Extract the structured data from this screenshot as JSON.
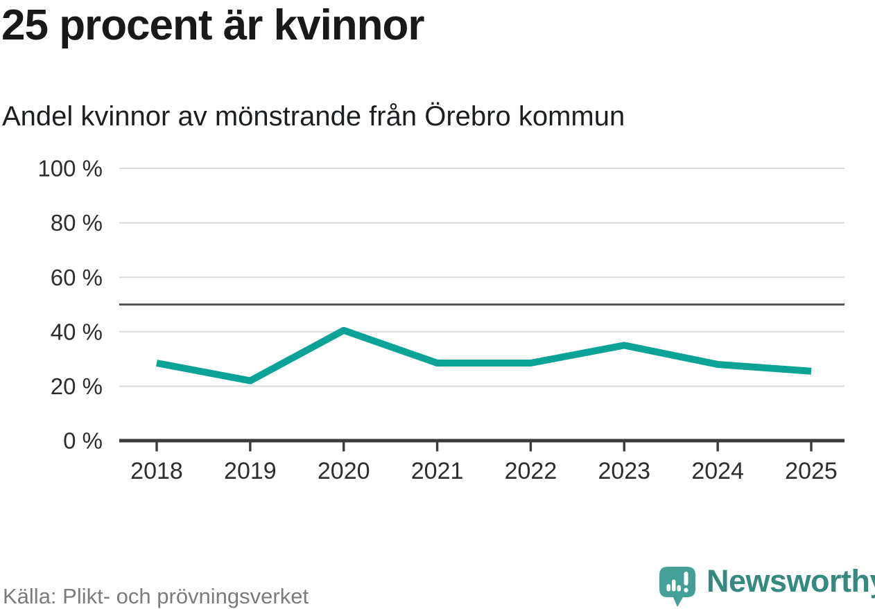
{
  "header": {
    "title": "25 procent är kvinnor",
    "subtitle": "Andel kvinnor av mönstrande från Örebro kommun"
  },
  "chart_data": {
    "type": "line",
    "title": "25 procent är kvinnor",
    "subtitle": "Andel kvinnor av mönstrande från Örebro kommun",
    "categories": [
      "2018",
      "2019",
      "2020",
      "2021",
      "2022",
      "2023",
      "2024",
      "2025"
    ],
    "series": [
      {
        "name": "Andel kvinnor av mönstrande",
        "values": [
          28.5,
          22,
          40.5,
          28.5,
          28.5,
          35,
          28,
          25.5
        ]
      }
    ],
    "unit": "%",
    "ylim": [
      0,
      100
    ],
    "yticks": [
      0,
      20,
      40,
      60,
      80,
      100
    ],
    "ytick_suffix": " %",
    "reference_line": 50,
    "grid": "horizontal-only",
    "legend": "none",
    "xlabel": "",
    "ylabel": ""
  },
  "footer": {
    "source": "Källa: Plikt- och prövningsverket",
    "logo_text": "Newsworthy"
  },
  "colors": {
    "line_teal": "#0aa396",
    "logo_bubble_teal": "#44a096",
    "logo_text_teal": "#35897e",
    "grid_gray": "#d9d9d9",
    "reference_gray": "#565656",
    "axis_dark": "#3b3b3b",
    "tick_label_gray": "#2d2d2d",
    "text_dark": "#17191b",
    "source_gray": "#7b7b7b"
  }
}
